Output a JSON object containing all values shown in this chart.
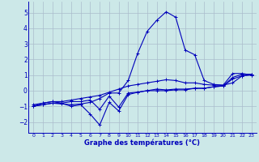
{
  "xlabel": "Graphe des températures (°C)",
  "background_color": "#cce8e8",
  "grid_color": "#aabccc",
  "line_color": "#0000bb",
  "xlim": [
    -0.5,
    23.5
  ],
  "ylim": [
    -2.7,
    5.7
  ],
  "yticks": [
    -2,
    -1,
    0,
    1,
    2,
    3,
    4,
    5
  ],
  "xticks": [
    0,
    1,
    2,
    3,
    4,
    5,
    6,
    7,
    8,
    9,
    10,
    11,
    12,
    13,
    14,
    15,
    16,
    17,
    18,
    19,
    20,
    21,
    22,
    23
  ],
  "series": [
    {
      "x": [
        0,
        1,
        2,
        3,
        4,
        5,
        6,
        7,
        8,
        9,
        10,
        11,
        12,
        13,
        14,
        15,
        16,
        17,
        18,
        19,
        20,
        21,
        22,
        23
      ],
      "y": [
        -1.0,
        -0.8,
        -0.7,
        -0.7,
        -0.6,
        -0.5,
        -0.4,
        -0.3,
        -0.1,
        0.1,
        0.3,
        0.4,
        0.5,
        0.6,
        0.7,
        0.65,
        0.5,
        0.5,
        0.4,
        0.35,
        0.35,
        0.5,
        0.95,
        1.05
      ]
    },
    {
      "x": [
        0,
        1,
        2,
        3,
        4,
        5,
        6,
        7,
        8,
        9,
        10,
        11,
        12,
        13,
        14,
        15,
        16,
        17,
        18,
        19,
        20,
        21,
        22,
        23
      ],
      "y": [
        -0.9,
        -0.8,
        -0.7,
        -0.8,
        -1.0,
        -0.9,
        -1.5,
        -2.2,
        -0.75,
        -1.3,
        -0.25,
        -0.1,
        0.0,
        0.1,
        0.05,
        0.1,
        0.1,
        0.15,
        0.15,
        0.25,
        0.3,
        0.85,
        1.05,
        1.05
      ]
    },
    {
      "x": [
        0,
        1,
        2,
        3,
        4,
        5,
        6,
        7,
        8,
        9,
        10,
        11,
        12,
        13,
        14,
        15,
        16,
        17,
        18,
        19,
        20,
        21,
        22,
        23
      ],
      "y": [
        -1.0,
        -0.9,
        -0.8,
        -0.8,
        -0.7,
        -0.7,
        -0.6,
        -1.2,
        -0.35,
        -1.05,
        -0.15,
        -0.1,
        0.0,
        0.0,
        0.0,
        0.05,
        0.05,
        0.15,
        0.15,
        0.25,
        0.3,
        0.75,
        0.95,
        1.0
      ]
    },
    {
      "x": [
        0,
        1,
        2,
        3,
        4,
        5,
        6,
        7,
        8,
        9,
        10,
        11,
        12,
        13,
        14,
        15,
        16,
        17,
        18,
        19,
        20,
        21,
        22,
        23
      ],
      "y": [
        -1.0,
        -0.9,
        -0.8,
        -0.85,
        -0.9,
        -0.85,
        -0.75,
        -0.5,
        -0.15,
        -0.15,
        0.65,
        2.4,
        3.8,
        4.5,
        5.05,
        4.7,
        2.6,
        2.3,
        0.65,
        0.4,
        0.35,
        1.1,
        1.1,
        1.0
      ]
    }
  ]
}
